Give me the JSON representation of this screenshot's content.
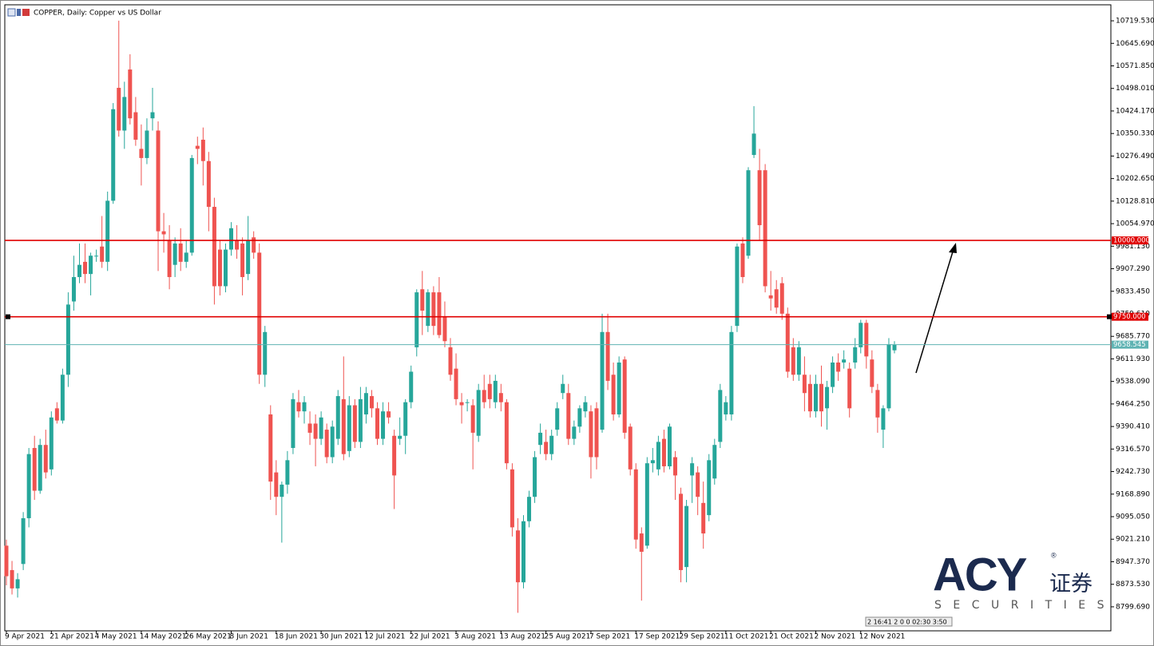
{
  "chart_data": {
    "type": "candlestick",
    "title": "COPPER, Daily:  Copper vs US Dollar",
    "up_color": "#26a69a",
    "down_color": "#ef5350",
    "categories": [
      "9 Apr 2021",
      null,
      null,
      null,
      null,
      null,
      null,
      null,
      "21 Apr 2021",
      null,
      null,
      null,
      null,
      null,
      null,
      null,
      "4 May 2021",
      null,
      null,
      null,
      null,
      null,
      null,
      null,
      "14 May 2021",
      null,
      null,
      null,
      null,
      null,
      null,
      null,
      "26 May 2021",
      null,
      null,
      null,
      null,
      null,
      null,
      null,
      "8 Jun 2021",
      null,
      null,
      null,
      null,
      null,
      null,
      null,
      "18 Jun 2021",
      null,
      null,
      null,
      null,
      null,
      null,
      null,
      "30 Jun 2021",
      null,
      null,
      null,
      null,
      null,
      null,
      null,
      "12 Jul 2021",
      null,
      null,
      null,
      null,
      null,
      null,
      null,
      "22 Jul 2021",
      null,
      null,
      null,
      null,
      null,
      null,
      null,
      "3 Aug 2021",
      null,
      null,
      null,
      null,
      null,
      null,
      null,
      "13 Aug 2021",
      null,
      null,
      null,
      null,
      null,
      null,
      null,
      "25 Aug 2021",
      null,
      null,
      null,
      null,
      null,
      null,
      null,
      "7 Sep 2021",
      null,
      null,
      null,
      null,
      null,
      null,
      null,
      "17 Sep 2021",
      null,
      null,
      null,
      null,
      null,
      null,
      null,
      "29 Sep 2021",
      null,
      null,
      null,
      null,
      null,
      null,
      null,
      "11 Oct 2021",
      null,
      null,
      null,
      null,
      null,
      null,
      null,
      "21 Oct 2021",
      null,
      null,
      null,
      null,
      null,
      null,
      null,
      "2 Nov 2021",
      null,
      null,
      null,
      null,
      null,
      null,
      null,
      "12 Nov 2021",
      null,
      null,
      null,
      null,
      null,
      null
    ],
    "open": [
      9000,
      8920,
      8860,
      8940,
      9090,
      9320,
      9180,
      9330,
      9250,
      9450,
      9410,
      9560,
      9800,
      9880,
      9930,
      9890,
      9950,
      9980,
      9930,
      10130,
      10500,
      10360,
      10560,
      10420,
      10300,
      10270,
      10400,
      10360,
      10030,
      10000,
      9920,
      9990,
      9930,
      9960,
      10310,
      10330,
      10260,
      10110,
      9970,
      9850,
      9970,
      10000,
      9990,
      9890,
      10010,
      9960,
      9560,
      9430,
      9240,
      9160,
      9200,
      9320,
      9470,
      9440,
      9400,
      9400,
      9350,
      9380,
      9290,
      9350,
      9480,
      9310,
      9460,
      9340,
      9430,
      9490,
      9450,
      9350,
      9440,
      9360,
      9350,
      9360,
      9470,
      9650,
      9840,
      9720,
      9830,
      9830,
      9750,
      9650,
      9580,
      9470,
      9470,
      9460,
      9360,
      9510,
      9530,
      9470,
      9500,
      9470,
      9250,
      9050,
      8880,
      9080,
      9160,
      9330,
      9340,
      9300,
      9380,
      9500,
      9500,
      9350,
      9390,
      9440,
      9440,
      9450,
      9380,
      9700,
      9560,
      9430,
      9610,
      9390,
      9250,
      9040,
      9000,
      9270,
      9250,
      9350,
      9260,
      9290,
      9170,
      8930,
      9230,
      9240,
      9140,
      9100,
      9220,
      9340,
      9430,
      9430,
      9720,
      9990,
      9950,
      10280,
      10230,
      10230,
      9820,
      9840,
      9860,
      9760,
      9650,
      9560,
      9560,
      9530,
      9440,
      9530,
      9450,
      9520,
      9600,
      9600,
      9580,
      9600,
      9650,
      9730,
      9610,
      9510,
      9380,
      9450,
      9640
    ],
    "high": [
      9020,
      8950,
      8910,
      9110,
      9320,
      9360,
      9350,
      9380,
      9440,
      9470,
      9580,
      9830,
      9950,
      9990,
      9990,
      9960,
      9970,
      10080,
      10160,
      10450,
      10720,
      10520,
      10610,
      10470,
      10380,
      10400,
      10500,
      10390,
      10090,
      10050,
      10010,
      10040,
      10000,
      10280,
      10340,
      10370,
      10290,
      10140,
      10000,
      9990,
      10060,
      10050,
      10010,
      10080,
      10030,
      9990,
      9720,
      9460,
      9280,
      9210,
      9310,
      9500,
      9510,
      9490,
      9440,
      9430,
      9440,
      9400,
      9410,
      9510,
      9620,
      9490,
      9480,
      9520,
      9520,
      9510,
      9470,
      9470,
      9470,
      9380,
      9420,
      9480,
      9590,
      9840,
      9900,
      9840,
      9850,
      9880,
      9800,
      9680,
      9630,
      9500,
      9480,
      9480,
      9530,
      9560,
      9560,
      9560,
      9530,
      9480,
      9270,
      9090,
      9100,
      9180,
      9310,
      9400,
      9380,
      9380,
      9470,
      9560,
      9530,
      9410,
      9460,
      9490,
      9460,
      9470,
      9760,
      9760,
      9600,
      9620,
      9620,
      9400,
      9270,
      9060,
      9290,
      9320,
      9360,
      9380,
      9400,
      9310,
      9190,
      9150,
      9290,
      9260,
      9210,
      9300,
      9350,
      9530,
      9490,
      9720,
      9990,
      10010,
      10240,
      10440,
      10300,
      10250,
      9900,
      9870,
      9880,
      9780,
      9680,
      9670,
      9620,
      9560,
      9560,
      9590,
      9540,
      9620,
      9630,
      9640,
      9600,
      9680,
      9740,
      9740,
      9640,
      9530,
      9460,
      9680,
      9670
    ],
    "low": [
      8870,
      8840,
      8830,
      8920,
      9060,
      9150,
      9170,
      9220,
      9230,
      9400,
      9400,
      9520,
      9770,
      9860,
      9860,
      9820,
      9930,
      9910,
      9900,
      10120,
      10340,
      10300,
      10380,
      10310,
      10180,
      10250,
      10360,
      9900,
      9960,
      9840,
      9880,
      9900,
      9910,
      9950,
      10250,
      10180,
      10030,
      9790,
      9820,
      9830,
      9950,
      9940,
      9820,
      9870,
      9940,
      9530,
      9520,
      9150,
      9100,
      9010,
      9170,
      9300,
      9420,
      9400,
      9330,
      9260,
      9330,
      9270,
      9270,
      9330,
      9280,
      9290,
      9320,
      9320,
      9400,
      9420,
      9330,
      9330,
      9400,
      9120,
      9330,
      9300,
      9450,
      9620,
      9690,
      9700,
      9690,
      9680,
      9650,
      9540,
      9460,
      9400,
      9440,
      9250,
      9340,
      9450,
      9450,
      9450,
      9440,
      9250,
      9030,
      8780,
      8860,
      9060,
      9140,
      9300,
      9280,
      9280,
      9360,
      9480,
      9330,
      9330,
      9370,
      9420,
      9220,
      9250,
      9370,
      9510,
      9410,
      9420,
      9350,
      9230,
      8990,
      8820,
      8990,
      9240,
      9230,
      9240,
      9250,
      9150,
      8880,
      8880,
      9140,
      9100,
      8990,
      9080,
      9200,
      9320,
      9410,
      9410,
      9700,
      9860,
      9940,
      10270,
      10000,
      9830,
      9770,
      9760,
      9740,
      9550,
      9540,
      9540,
      9440,
      9420,
      9420,
      9390,
      9380,
      9500,
      9540,
      9580,
      9420,
      9580,
      9630,
      9580,
      9500,
      9370,
      9320,
      9440,
      9630
    ],
    "close": [
      8900,
      8860,
      8890,
      9090,
      9300,
      9180,
      9330,
      9240,
      9420,
      9410,
      9560,
      9790,
      9880,
      9920,
      9890,
      9950,
      9950,
      9930,
      10130,
      10430,
      10360,
      10470,
      10400,
      10330,
      10270,
      10360,
      10420,
      10030,
      10020,
      9880,
      9990,
      9930,
      9960,
      10270,
      10300,
      10260,
      10110,
      9850,
      9850,
      9970,
      10040,
      9970,
      9880,
      10000,
      9960,
      9560,
      9700,
      9210,
      9160,
      9200,
      9280,
      9480,
      9440,
      9470,
      9370,
      9350,
      9420,
      9290,
      9390,
      9490,
      9300,
      9460,
      9340,
      9480,
      9500,
      9450,
      9350,
      9440,
      9420,
      9230,
      9360,
      9470,
      9570,
      9830,
      9770,
      9830,
      9720,
      9690,
      9670,
      9560,
      9480,
      9460,
      9470,
      9370,
      9510,
      9470,
      9480,
      9540,
      9470,
      9270,
      9060,
      8880,
      9080,
      9160,
      9290,
      9370,
      9300,
      9360,
      9450,
      9530,
      9350,
      9390,
      9450,
      9470,
      9290,
      9290,
      9700,
      9540,
      9430,
      9600,
      9370,
      9250,
      9020,
      8980,
      9270,
      9280,
      9340,
      9260,
      9390,
      9230,
      8920,
      9130,
      9270,
      9160,
      9040,
      9280,
      9330,
      9510,
      9470,
      9700,
      9980,
      9880,
      10230,
      10350,
      10050,
      9850,
      9810,
      9780,
      9760,
      9570,
      9560,
      9650,
      9500,
      9440,
      9530,
      9440,
      9520,
      9600,
      9570,
      9610,
      9450,
      9650,
      9730,
      9620,
      9520,
      9420,
      9450,
      9660,
      9659
    ],
    "ylim": [
      8721,
      10772
    ],
    "yticks": [
      {
        "value": 10719.53,
        "label": "10719.530"
      },
      {
        "value": 10645.69,
        "label": "10645.690"
      },
      {
        "value": 10571.85,
        "label": "10571.850"
      },
      {
        "value": 10498.01,
        "label": "10498.010"
      },
      {
        "value": 10424.17,
        "label": "10424.170"
      },
      {
        "value": 10350.33,
        "label": "10350.330"
      },
      {
        "value": 10276.49,
        "label": "10276.490"
      },
      {
        "value": 10202.65,
        "label": "10202.650"
      },
      {
        "value": 10128.81,
        "label": "10128.810"
      },
      {
        "value": 10054.97,
        "label": "10054.970"
      },
      {
        "value": 9981.13,
        "label": "9981.130"
      },
      {
        "value": 9907.29,
        "label": "9907.290"
      },
      {
        "value": 9833.45,
        "label": "9833.450"
      },
      {
        "value": 9759.61,
        "label": "9759.610"
      },
      {
        "value": 9685.77,
        "label": "9685.770"
      },
      {
        "value": 9611.93,
        "label": "9611.930"
      },
      {
        "value": 9538.09,
        "label": "9538.090"
      },
      {
        "value": 9464.25,
        "label": "9464.250"
      },
      {
        "value": 9390.41,
        "label": "9390.410"
      },
      {
        "value": 9316.57,
        "label": "9316.570"
      },
      {
        "value": 9242.73,
        "label": "9242.730"
      },
      {
        "value": 9168.89,
        "label": "9168.890"
      },
      {
        "value": 9095.05,
        "label": "9095.050"
      },
      {
        "value": 9021.21,
        "label": "9021.210"
      },
      {
        "value": 8947.37,
        "label": "8947.370"
      },
      {
        "value": 8873.53,
        "label": "8873.530"
      },
      {
        "value": 8799.69,
        "label": "8799.690"
      }
    ],
    "hlines": [
      {
        "value": 10000,
        "label": "10000.000",
        "color": "#e00000"
      },
      {
        "value": 9750,
        "label": "9750.000",
        "color": "#e00000"
      },
      {
        "value": 9658.545,
        "color": "#5fb3b3"
      }
    ]
  },
  "watermark": {
    "brand": "ACY",
    "mark": "®",
    "chinese": "证券",
    "tagline": "SECURITIES"
  },
  "timer": "2 16:41 2 0 0 02:30 3:50"
}
